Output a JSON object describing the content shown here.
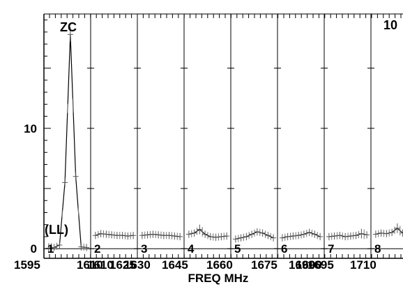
{
  "chart_data": {
    "type": "line",
    "title": "",
    "xlabel": "FREQ MHz",
    "ylabel": "",
    "ylim": [
      -0.8,
      19.5
    ],
    "yticks": [
      0,
      10
    ],
    "ytick_labels": [
      "0",
      "10"
    ],
    "xtick_labels": [
      "1595",
      "1610",
      "1610",
      "1625",
      "1630",
      "1645",
      "1660",
      "1675",
      "1690",
      "1690",
      "1695",
      "1710"
    ],
    "annotations": {
      "top_left": "ZC",
      "top_right": "10",
      "polarization": "(LL)"
    },
    "grid": false,
    "panels": [
      {
        "label": "1",
        "x": [
          1595,
          1597,
          1599,
          1601,
          1603,
          1605,
          1607,
          1609
        ],
        "y": [
          0.05,
          0.1,
          0.3,
          5.5,
          17.8,
          6.0,
          0.15,
          0.1
        ],
        "error": [
          0.4,
          0.3,
          0.3,
          0.4,
          0.6,
          0.4,
          0.3,
          0.3
        ]
      },
      {
        "label": "2",
        "x": [
          1610,
          1612,
          1614,
          1616,
          1618,
          1620,
          1622,
          1624
        ],
        "y": [
          1.1,
          1.25,
          1.2,
          1.15,
          1.1,
          1.1,
          1.05,
          1.1
        ],
        "error": [
          0.3,
          0.3,
          0.3,
          0.3,
          0.3,
          0.3,
          0.3,
          0.3
        ]
      },
      {
        "label": "3",
        "x": [
          1625,
          1627,
          1629,
          1631,
          1633,
          1635,
          1637,
          1639
        ],
        "y": [
          1.1,
          1.15,
          1.2,
          1.15,
          1.1,
          1.1,
          1.05,
          1.0
        ],
        "error": [
          0.3,
          0.3,
          0.3,
          0.3,
          0.3,
          0.3,
          0.3,
          0.3
        ]
      },
      {
        "label": "4",
        "x": [
          1640,
          1642,
          1644,
          1646,
          1648,
          1650,
          1652,
          1654
        ],
        "y": [
          1.2,
          1.3,
          1.6,
          1.2,
          1.0,
          0.95,
          1.0,
          1.05
        ],
        "error": [
          0.3,
          0.3,
          0.4,
          0.3,
          0.3,
          0.3,
          0.3,
          0.3
        ]
      },
      {
        "label": "5",
        "x": [
          1655,
          1657,
          1659,
          1661,
          1663,
          1665,
          1667,
          1669
        ],
        "y": [
          0.8,
          0.9,
          1.0,
          1.2,
          1.4,
          1.3,
          1.1,
          0.9
        ],
        "error": [
          0.3,
          0.3,
          0.3,
          0.3,
          0.3,
          0.3,
          0.3,
          0.3
        ]
      },
      {
        "label": "6",
        "x": [
          1670,
          1672,
          1674,
          1676,
          1678,
          1680,
          1682,
          1684
        ],
        "y": [
          0.9,
          1.0,
          1.05,
          1.1,
          1.2,
          1.35,
          1.2,
          1.0
        ],
        "error": [
          0.3,
          0.3,
          0.3,
          0.3,
          0.3,
          0.3,
          0.3,
          0.3
        ]
      },
      {
        "label": "7",
        "x": [
          1685,
          1687,
          1689,
          1691,
          1693,
          1695,
          1697,
          1699
        ],
        "y": [
          1.0,
          1.05,
          1.1,
          1.0,
          1.05,
          1.1,
          1.25,
          1.15
        ],
        "error": [
          0.3,
          0.3,
          0.3,
          0.3,
          0.3,
          0.3,
          0.4,
          0.3
        ]
      },
      {
        "label": "8",
        "x": [
          1700,
          1702,
          1704,
          1706,
          1708,
          1710,
          1712,
          1714
        ],
        "y": [
          1.2,
          1.3,
          1.25,
          1.35,
          1.7,
          1.3,
          1.1,
          1.0
        ],
        "error": [
          0.3,
          0.3,
          0.3,
          0.3,
          0.4,
          0.3,
          0.3,
          0.3
        ]
      }
    ]
  }
}
